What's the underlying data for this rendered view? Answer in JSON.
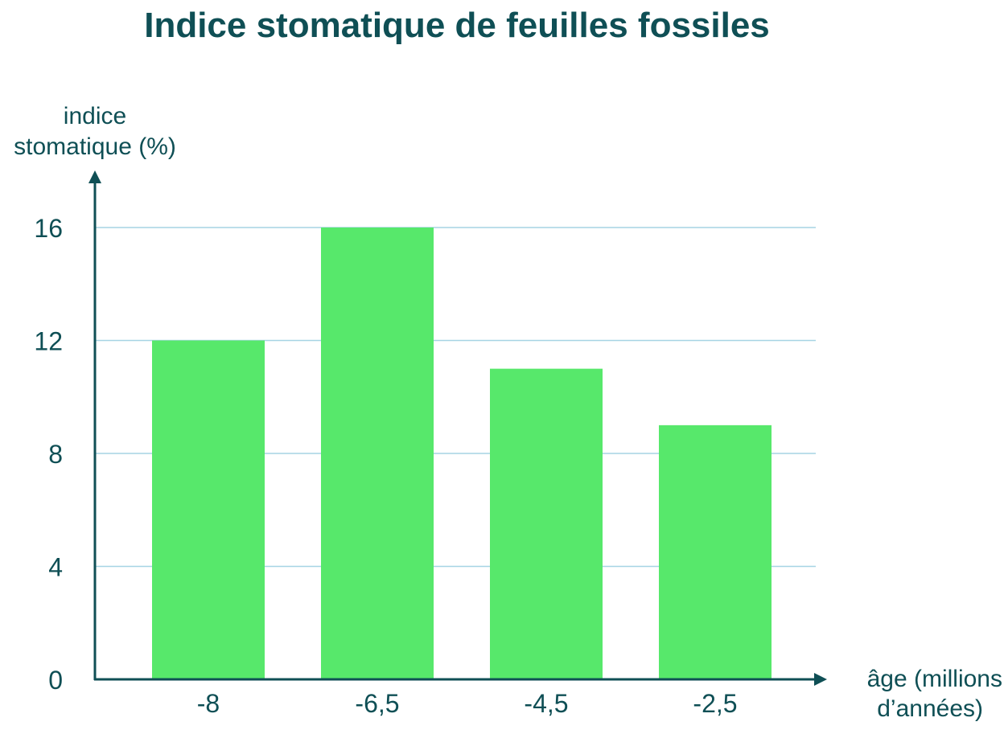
{
  "colors": {
    "text": "#0f4f55",
    "bar": "#57e86b",
    "grid": "#a6d4e4",
    "axis": "#0f4f55"
  },
  "chart_data": {
    "type": "bar",
    "title": "Indice stomatique de feuilles fossiles",
    "ylabel_lines": [
      "indice",
      "stomatique (%)"
    ],
    "xlabel_lines": [
      "âge (millions",
      "d’années)"
    ],
    "categories": [
      "-8",
      "-6,5",
      "-4,5",
      "-2,5"
    ],
    "values": [
      12,
      16,
      11,
      9
    ],
    "yticks": [
      "0",
      "4",
      "8",
      "12",
      "16"
    ],
    "ylim": [
      0,
      16
    ],
    "grid": true,
    "legend": "none"
  }
}
